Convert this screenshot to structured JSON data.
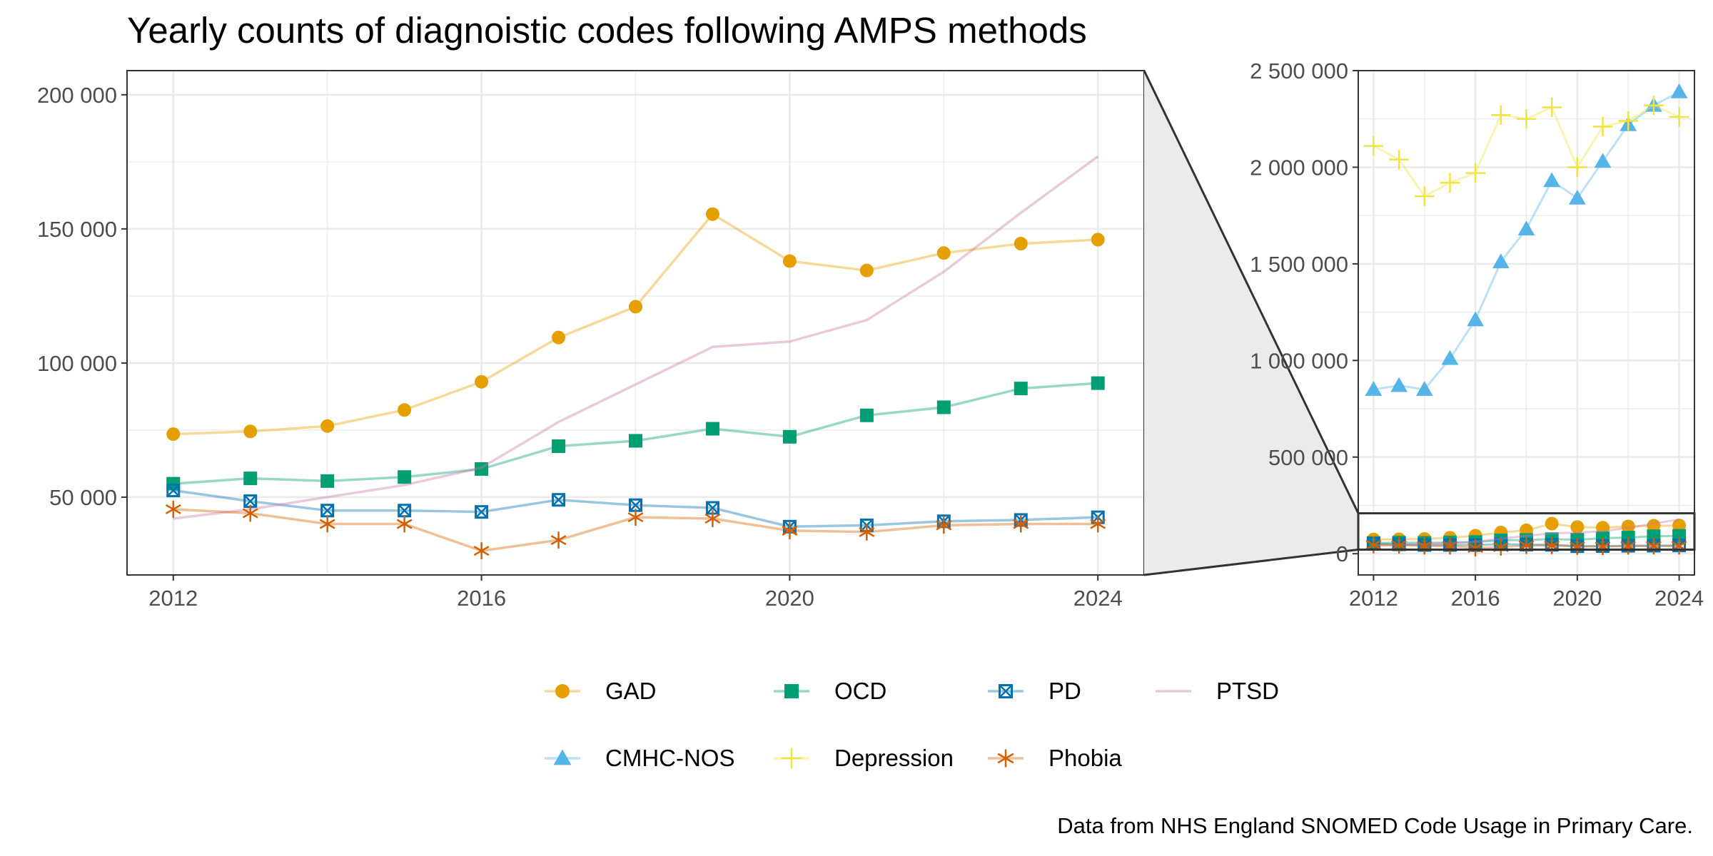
{
  "title": "Yearly counts of diagnoistic codes following AMPS methods",
  "caption": "Data from NHS England SNOMED Code Usage in Primary Care.",
  "colors": {
    "GAD": "#E69F00",
    "OCD": "#009E73",
    "PD": "#0072B2",
    "PTSD": "#CC79A7",
    "CMHC-NOS": "#56B4E9",
    "Depression": "#F0E442",
    "Phobia": "#D55E00",
    "zoom_fill": "#ebebeb",
    "grid": "#ebebeb",
    "frame": "#333333"
  },
  "legend": [
    {
      "name": "GAD",
      "marker": "circle"
    },
    {
      "name": "OCD",
      "marker": "square"
    },
    {
      "name": "PD",
      "marker": "square-x"
    },
    {
      "name": "PTSD",
      "marker": "none"
    },
    {
      "name": "CMHC-NOS",
      "marker": "triangle"
    },
    {
      "name": "Depression",
      "marker": "plus"
    },
    {
      "name": "Phobia",
      "marker": "asterisk"
    }
  ],
  "chart_data": [
    {
      "type": "line",
      "panel": "main",
      "x_ticks": [
        "2012",
        "2016",
        "2020",
        "2024"
      ],
      "y_ticks": [
        "50 000",
        "100 000",
        "150 000",
        "200 000"
      ],
      "xlim": [
        2011.4,
        2024.6
      ],
      "ylim": [
        21000,
        209000
      ],
      "x": [
        2012,
        2013,
        2014,
        2015.5,
        2016.6,
        2017.6,
        2018.6,
        2019.6,
        2020.6,
        2021.6,
        2022.6,
        2023.6,
        2024
      ],
      "series": [
        {
          "name": "GAD",
          "x": [
            2012,
            2013,
            2014,
            2015,
            2016,
            2017,
            2018,
            2019,
            2020,
            2021,
            2022,
            2023,
            2024
          ],
          "values": [
            73500,
            74500,
            76500,
            82500,
            93000,
            109500,
            121000,
            155500,
            138000,
            134500,
            141000,
            144500,
            146000
          ]
        },
        {
          "name": "OCD",
          "x": [
            2012,
            2013,
            2014,
            2015,
            2016,
            2017,
            2018,
            2019,
            2020,
            2021,
            2022,
            2023,
            2024
          ],
          "values": [
            55000,
            57000,
            56000,
            57500,
            60500,
            69000,
            71000,
            75500,
            72500,
            80500,
            83500,
            90500,
            92500
          ]
        },
        {
          "name": "PD",
          "x": [
            2012,
            2013,
            2014,
            2015,
            2016,
            2017,
            2018,
            2019,
            2020,
            2021,
            2022,
            2023,
            2024
          ],
          "values": [
            52500,
            48500,
            45000,
            45000,
            44500,
            49000,
            47000,
            46000,
            39000,
            39500,
            41000,
            41500,
            42500
          ]
        },
        {
          "name": "PTSD",
          "x": [
            2012,
            2013,
            2014,
            2015,
            2016,
            2017,
            2018,
            2019,
            2020,
            2021,
            2022,
            2023,
            2024
          ],
          "values": [
            42000,
            45500,
            50000,
            54500,
            61000,
            78000,
            92000,
            106000,
            108000,
            116000,
            134000,
            156000,
            177000
          ]
        },
        {
          "name": "Phobia",
          "x": [
            2012,
            2013,
            2014,
            2015,
            2016,
            2017,
            2018,
            2019,
            2020,
            2021,
            2022,
            2023,
            2024
          ],
          "values": [
            45500,
            44000,
            40000,
            40000,
            30000,
            34000,
            42500,
            42000,
            37500,
            37000,
            39500,
            40000,
            40000
          ]
        }
      ]
    },
    {
      "type": "line",
      "panel": "zoom-out",
      "x_ticks": [
        "2012",
        "2016",
        "2020",
        "2024"
      ],
      "y_ticks": [
        "0",
        "500 000",
        "1 000 000",
        "1 500 000",
        "2 000 000",
        "2 500 000"
      ],
      "xlim": [
        2011.4,
        2024.6
      ],
      "ylim": [
        -110000,
        2500000
      ],
      "zoom_window": [
        21000,
        209000
      ],
      "series": [
        {
          "name": "GAD",
          "x": [
            2012,
            2013,
            2014,
            2015,
            2016,
            2017,
            2018,
            2019,
            2020,
            2021,
            2022,
            2023,
            2024
          ],
          "values": [
            73500,
            74500,
            76500,
            82500,
            93000,
            109500,
            121000,
            155500,
            138000,
            134500,
            141000,
            144500,
            146000
          ]
        },
        {
          "name": "OCD",
          "x": [
            2012,
            2013,
            2014,
            2015,
            2016,
            2017,
            2018,
            2019,
            2020,
            2021,
            2022,
            2023,
            2024
          ],
          "values": [
            55000,
            57000,
            56000,
            57500,
            60500,
            69000,
            71000,
            75500,
            72500,
            80500,
            83500,
            90500,
            92500
          ]
        },
        {
          "name": "PD",
          "x": [
            2012,
            2013,
            2014,
            2015,
            2016,
            2017,
            2018,
            2019,
            2020,
            2021,
            2022,
            2023,
            2024
          ],
          "values": [
            52500,
            48500,
            45000,
            45000,
            44500,
            49000,
            47000,
            46000,
            39000,
            39500,
            41000,
            41500,
            42500
          ]
        },
        {
          "name": "PTSD",
          "x": [
            2012,
            2013,
            2014,
            2015,
            2016,
            2017,
            2018,
            2019,
            2020,
            2021,
            2022,
            2023,
            2024
          ],
          "values": [
            42000,
            45500,
            50000,
            54500,
            61000,
            78000,
            92000,
            106000,
            108000,
            116000,
            134000,
            156000,
            177000
          ]
        },
        {
          "name": "Phobia",
          "x": [
            2012,
            2013,
            2014,
            2015,
            2016,
            2017,
            2018,
            2019,
            2020,
            2021,
            2022,
            2023,
            2024
          ],
          "values": [
            45500,
            44000,
            40000,
            40000,
            30000,
            34000,
            42500,
            42000,
            37500,
            37000,
            39500,
            40000,
            40000
          ]
        },
        {
          "name": "CMHC-NOS",
          "x": [
            2012,
            2013,
            2014,
            2015,
            2016,
            2017,
            2018,
            2019,
            2020,
            2021,
            2022,
            2023,
            2024
          ],
          "values": [
            850000,
            870000,
            850000,
            1010000,
            1210000,
            1510000,
            1680000,
            1930000,
            1840000,
            2030000,
            2220000,
            2320000,
            2390000
          ]
        },
        {
          "name": "Depression",
          "x": [
            2012,
            2013,
            2014,
            2015,
            2016,
            2017,
            2018,
            2019,
            2020,
            2021,
            2022,
            2023,
            2024
          ],
          "values": [
            2110000,
            2040000,
            1850000,
            1920000,
            1970000,
            2270000,
            2250000,
            2310000,
            2000000,
            2210000,
            2240000,
            2320000,
            2260000
          ]
        }
      ]
    }
  ]
}
